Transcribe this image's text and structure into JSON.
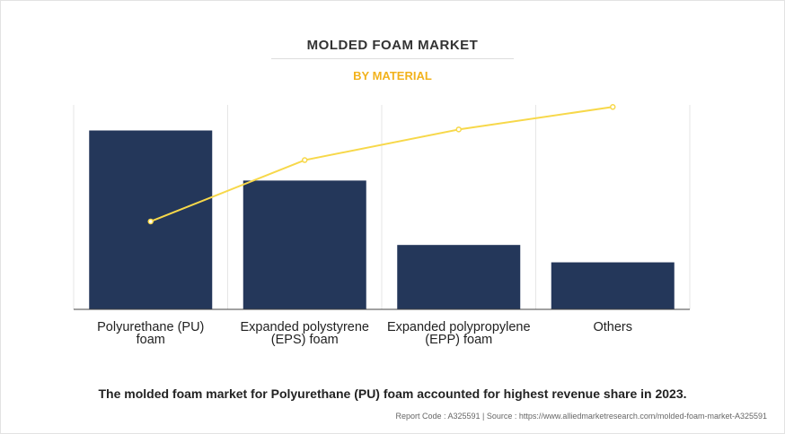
{
  "header": {
    "title": "MOLDED FOAM MARKET",
    "subtitle": "BY MATERIAL"
  },
  "chart_data": {
    "type": "bar",
    "title": "MOLDED FOAM MARKET",
    "subtitle": "BY MATERIAL",
    "categories": [
      [
        "Polyurethane (PU)",
        "foam"
      ],
      [
        "Expanded polystyrene",
        "(EPS) foam"
      ],
      [
        "Expanded polypropylene",
        "(EPP) foam"
      ],
      [
        "Others"
      ]
    ],
    "series": [
      {
        "type": "bar",
        "values": [
          87.5,
          63,
          31.5,
          23
        ]
      },
      {
        "type": "line",
        "values": [
          43,
          73,
          88,
          99
        ]
      }
    ],
    "ylim": [
      0,
      100
    ],
    "grid": "vertical",
    "colors": {
      "bar": "#24375a",
      "line": "#f7d84a",
      "title": "#333333",
      "subtitle": "#f2b21c"
    }
  },
  "footer": {
    "caption": "The molded foam market for Polyurethane (PU) foam accounted for highest revenue share in 2023.",
    "source": "Report Code : A325591  |  Source : https://www.alliedmarketresearch.com/molded-foam-market-A325591"
  }
}
